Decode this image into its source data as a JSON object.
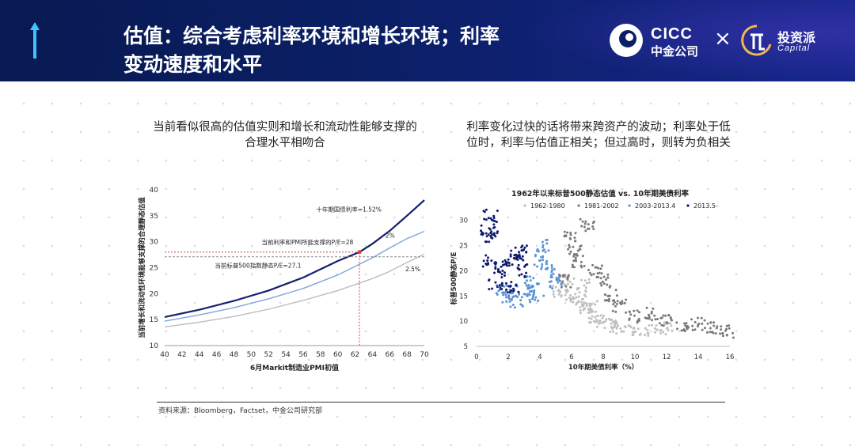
{
  "header": {
    "title_line1": "估值：综合考虑利率环境和增长环境；利率",
    "title_line2": "变动速度和水平",
    "logo_cicc_en": "CICC",
    "logo_cicc_cn": "中金公司",
    "times_sign": "×",
    "logo_tzp_cn": "投资派",
    "logo_tzp_en": "Capital",
    "colors": {
      "background": "#0b1f66",
      "accent": "#16268a"
    }
  },
  "left_caption": {
    "line1": "当前看似很高的估值实则和增长和流动性能够支撑的",
    "line2": "合理水平相吻合"
  },
  "right_caption": {
    "line1": "利率变化过快的话将带来跨资产的波动；利率处于低",
    "line2": "位时，利率与估值正相关；但过高时，则转为负相关"
  },
  "chart_data": [
    {
      "type": "line",
      "title": "",
      "xlabel": "6月Markit制造业PMI初值",
      "ylabel": "当前增长和流动性环境能够支撑的合理静态估值",
      "xlim": [
        40,
        70
      ],
      "ylim": [
        10,
        40
      ],
      "x_ticks": [
        "40",
        "42",
        "44",
        "46",
        "48",
        "50",
        "52",
        "54",
        "56",
        "58",
        "60",
        "62",
        "64",
        "66",
        "68",
        "70"
      ],
      "y_ticks": [
        "10",
        "15",
        "20",
        "25",
        "30",
        "35",
        "40"
      ],
      "series": [
        {
          "name": "十年期国债利率=1.52%",
          "color": "#14206e",
          "x": [
            40,
            44,
            48,
            52,
            56,
            60,
            62.5,
            64,
            66,
            68,
            70
          ],
          "y": [
            15.5,
            16.9,
            18.6,
            20.6,
            23.1,
            26.3,
            28.0,
            29.6,
            32.1,
            35.0,
            38.0
          ]
        },
        {
          "name": "2%",
          "color": "#7ea6d8",
          "x": [
            40,
            44,
            48,
            52,
            56,
            60,
            64,
            66,
            68,
            70
          ],
          "y": [
            14.7,
            15.9,
            17.3,
            19.0,
            21.0,
            23.6,
            26.9,
            28.8,
            30.6,
            32.0
          ]
        },
        {
          "name": "2.5%",
          "color": "#bdbdbd",
          "x": [
            40,
            44,
            48,
            52,
            56,
            60,
            64,
            66,
            68,
            70
          ],
          "y": [
            13.6,
            14.5,
            15.6,
            17.0,
            18.7,
            20.6,
            22.9,
            24.3,
            26.0,
            27.6
          ]
        }
      ],
      "annotations": [
        {
          "text": "当前利率和PMI所能支撑的P/E=28",
          "x": 62.5,
          "y": 28,
          "color": "#e53935"
        },
        {
          "text": "当前标普500指数静态P/E=27.1",
          "y": 27.1,
          "color": "#888888"
        }
      ]
    },
    {
      "type": "scatter",
      "title": "1962年以来标普500静态估值 vs. 10年期美债利率",
      "xlabel": "10年期美债利率（%）",
      "ylabel": "标普500静态P/E",
      "xlim": [
        0,
        16
      ],
      "ylim": [
        5,
        32
      ],
      "x_ticks": [
        "0",
        "2",
        "4",
        "6",
        "8",
        "10",
        "12",
        "14",
        "16"
      ],
      "y_ticks": [
        "5",
        "10",
        "15",
        "20",
        "25",
        "30"
      ],
      "legend": [
        "1962-1980",
        "1981-2002",
        "2003-2013.4",
        "2013.5-"
      ],
      "legend_position": "top",
      "series": [
        {
          "name": "1962-1980",
          "color": "#c0c0c0",
          "points": [
            [
              5.2,
              16
            ],
            [
              6,
              15
            ],
            [
              6.5,
              14
            ],
            [
              7,
              12.5
            ],
            [
              7.5,
              11
            ],
            [
              8,
              10
            ],
            [
              8.5,
              9
            ],
            [
              9,
              8.8
            ],
            [
              10,
              8.5
            ],
            [
              11,
              8
            ],
            [
              12,
              8.5
            ],
            [
              7.2,
              13
            ],
            [
              6.8,
              17
            ],
            [
              5.8,
              18
            ]
          ]
        },
        {
          "name": "1981-2002",
          "color": "#7a7a7a",
          "points": [
            [
              6,
              27
            ],
            [
              7,
              29
            ],
            [
              6.5,
              22
            ],
            [
              7.5,
              20
            ],
            [
              8,
              18
            ],
            [
              8.5,
              15
            ],
            [
              9,
              13
            ],
            [
              10,
              11
            ],
            [
              11,
              11.5
            ],
            [
              12,
              10
            ],
            [
              13,
              9
            ],
            [
              14,
              9.5
            ],
            [
              15,
              8.5
            ],
            [
              15.8,
              8
            ],
            [
              6.2,
              24
            ],
            [
              5.5,
              18
            ]
          ]
        },
        {
          "name": "2003-2013.4",
          "color": "#5b93d3",
          "points": [
            [
              1.7,
              16
            ],
            [
              2,
              15
            ],
            [
              2.5,
              14
            ],
            [
              3,
              16
            ],
            [
              3.5,
              18
            ],
            [
              4,
              22
            ],
            [
              4.2,
              25
            ],
            [
              4.5,
              20
            ],
            [
              5,
              17.5
            ],
            [
              3.8,
              15
            ]
          ]
        },
        {
          "name": "2013.5-",
          "color": "#0d1a6e",
          "points": [
            [
              0.7,
              28
            ],
            [
              0.9,
              31
            ],
            [
              1,
              27
            ],
            [
              0.8,
              22
            ],
            [
              1.5,
              20
            ],
            [
              2,
              22
            ],
            [
              2.5,
              23
            ],
            [
              3,
              20
            ],
            [
              2.2,
              17
            ],
            [
              1.2,
              17.5
            ],
            [
              2.8,
              24
            ]
          ]
        }
      ]
    }
  ],
  "source": "资料来源：Bloomberg，Factset，中金公司研究部"
}
